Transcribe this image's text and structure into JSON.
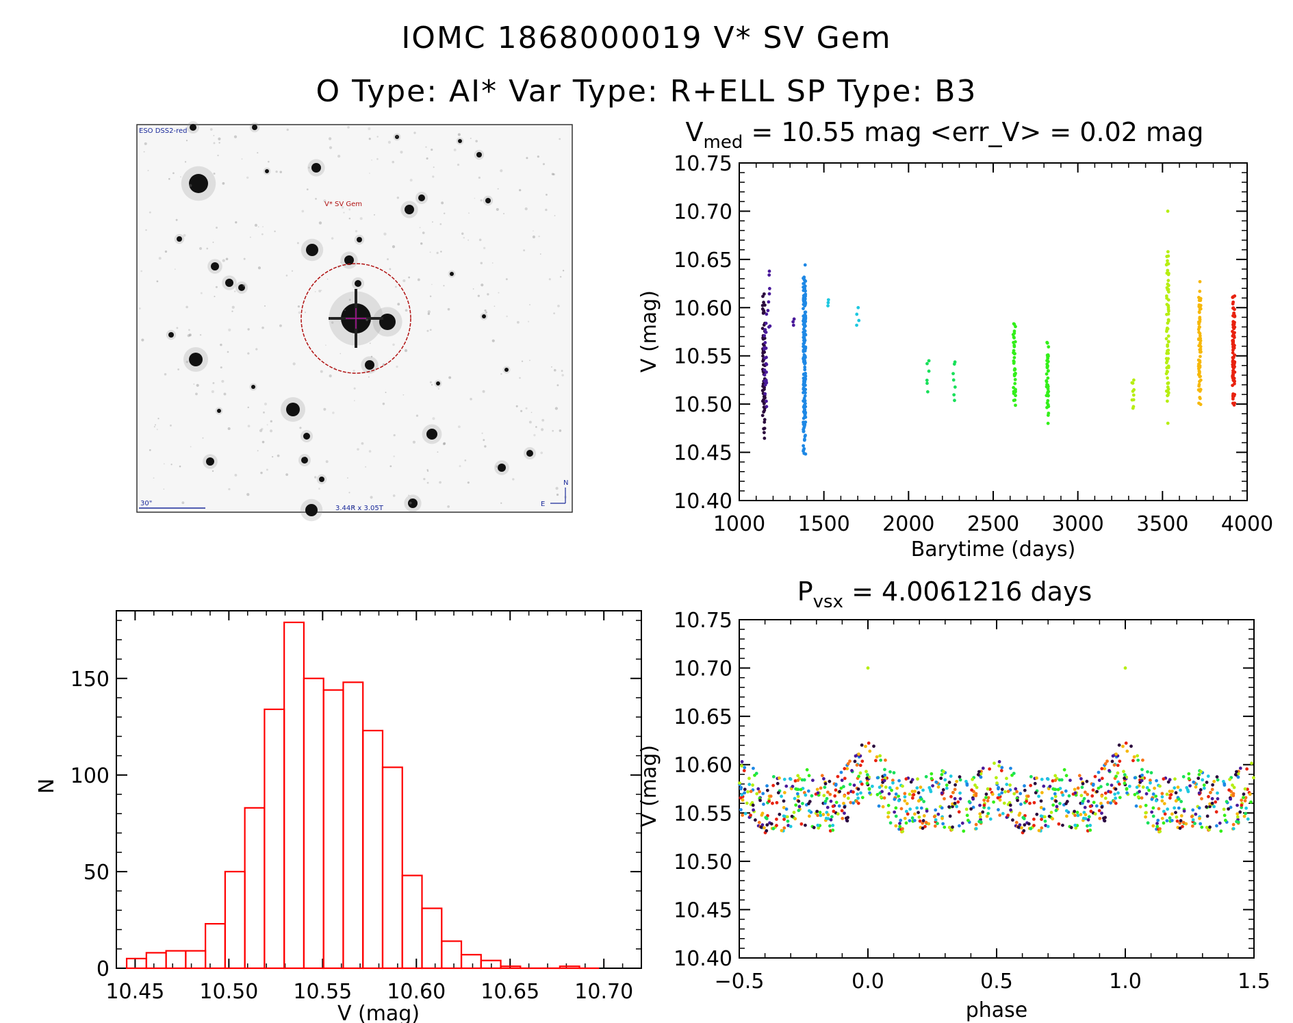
{
  "header": {
    "title_line1": "IOMC 1868000019    V* SV Gem",
    "title_line2": "O Type: AI*  Var Type: R+ELL  SP Type: B3"
  },
  "finder": {
    "survey_label": "ESO DSS2-red",
    "target_label": "V* SV Gem",
    "scale_label": "30\"",
    "fov_label": "3.44R x 3.05T",
    "north_label": "N",
    "east_label": "E",
    "circle_color": "#b01010"
  },
  "colors": {
    "palette": [
      "#2b0a3d",
      "#4a1a9a",
      "#1e88e5",
      "#1ec8e0",
      "#19e05a",
      "#33ef1a",
      "#b6ee12",
      "#f6b80a",
      "#f8751a",
      "#e8220f"
    ],
    "histogram": "#ff0000"
  },
  "chart_data": [
    {
      "id": "lightcurve",
      "type": "scatter",
      "title_main": "V",
      "title_sub": "med",
      "title_rest": " = 10.55 mag <err_V> = 0.02 mag",
      "xlabel": "Barytime (days)",
      "ylabel": "V (mag)",
      "xlim": [
        1000,
        4000
      ],
      "ylim": [
        10.75,
        10.4
      ],
      "xticks": [
        "1000",
        "1500",
        "2000",
        "2500",
        "3000",
        "3500",
        "4000"
      ],
      "yticks": [
        "10.40",
        "10.45",
        "10.50",
        "10.55",
        "10.60",
        "10.65",
        "10.70",
        "10.75"
      ],
      "series": [
        {
          "x": 1145,
          "ymin": 10.46,
          "ymax": 10.62,
          "n": 70,
          "color": 0
        },
        {
          "x": 1155,
          "ymin": 10.49,
          "ymax": 10.6,
          "n": 25,
          "color": 1
        },
        {
          "x": 1175,
          "ymin": 10.57,
          "ymax": 10.65,
          "n": 8,
          "color": 1
        },
        {
          "x": 1320,
          "ymin": 10.58,
          "ymax": 10.59,
          "n": 3,
          "color": 1
        },
        {
          "x": 1385,
          "ymin": 10.44,
          "ymax": 10.65,
          "n": 180,
          "color": 2
        },
        {
          "x": 1530,
          "ymin": 10.6,
          "ymax": 10.61,
          "n": 3,
          "color": 3
        },
        {
          "x": 1700,
          "ymin": 10.58,
          "ymax": 10.6,
          "n": 4,
          "color": 3
        },
        {
          "x": 2115,
          "ymin": 10.51,
          "ymax": 10.55,
          "n": 6,
          "color": 4
        },
        {
          "x": 2270,
          "ymin": 10.5,
          "ymax": 10.55,
          "n": 7,
          "color": 4
        },
        {
          "x": 2625,
          "ymin": 10.49,
          "ymax": 10.59,
          "n": 40,
          "color": 5
        },
        {
          "x": 2820,
          "ymin": 10.48,
          "ymax": 10.57,
          "n": 40,
          "color": 5
        },
        {
          "x": 3325,
          "ymin": 10.49,
          "ymax": 10.53,
          "n": 10,
          "color": 6
        },
        {
          "x": 3530,
          "ymin": 10.48,
          "ymax": 10.67,
          "n": 70,
          "color": 6
        },
        {
          "x": 3530,
          "ymin": 10.7,
          "ymax": 10.7,
          "n": 1,
          "color": 6
        },
        {
          "x": 3720,
          "ymin": 10.49,
          "ymax": 10.63,
          "n": 70,
          "color": 7
        },
        {
          "x": 3920,
          "ymin": 10.49,
          "ymax": 10.62,
          "n": 90,
          "color": 9
        }
      ]
    },
    {
      "id": "phased",
      "type": "scatter",
      "title_main": "P",
      "title_sub": "vsx",
      "title_rest": " = 4.0061216 days",
      "xlabel": "phase",
      "ylabel": "V (mag)",
      "period_days": 4.0061216,
      "xlim": [
        -0.5,
        1.5
      ],
      "ylim": [
        10.75,
        10.4
      ],
      "xticks": [
        "−0.5",
        "0.0",
        "0.5",
        "1.0",
        "1.5"
      ],
      "yticks": [
        "10.40",
        "10.45",
        "10.50",
        "10.55",
        "10.60",
        "10.65",
        "10.70",
        "10.75"
      ],
      "light_curve": {
        "mean": 10.555,
        "primary_min": {
          "phase": 0.0,
          "depth": 0.05,
          "width": 0.06
        },
        "secondary_min": {
          "phase": 0.5,
          "depth": 0.03,
          "width": 0.06
        },
        "ellipsoidal_amp": 0.02
      }
    },
    {
      "id": "histogram",
      "type": "bar",
      "xlabel": "V (mag)",
      "ylabel": "N",
      "xlim": [
        10.44,
        10.72
      ],
      "ylim": [
        0,
        185
      ],
      "xticks": [
        "10.45",
        "10.50",
        "10.55",
        "10.60",
        "10.65",
        "10.70"
      ],
      "yticks": [
        "0",
        "50",
        "100",
        "150"
      ],
      "bin_width": 0.0105,
      "bin_start": 10.4455,
      "values": [
        5,
        8,
        9,
        9,
        23,
        50,
        83,
        134,
        179,
        150,
        144,
        148,
        123,
        104,
        48,
        31,
        14,
        7,
        4,
        1,
        0,
        0,
        1,
        0
      ]
    }
  ]
}
